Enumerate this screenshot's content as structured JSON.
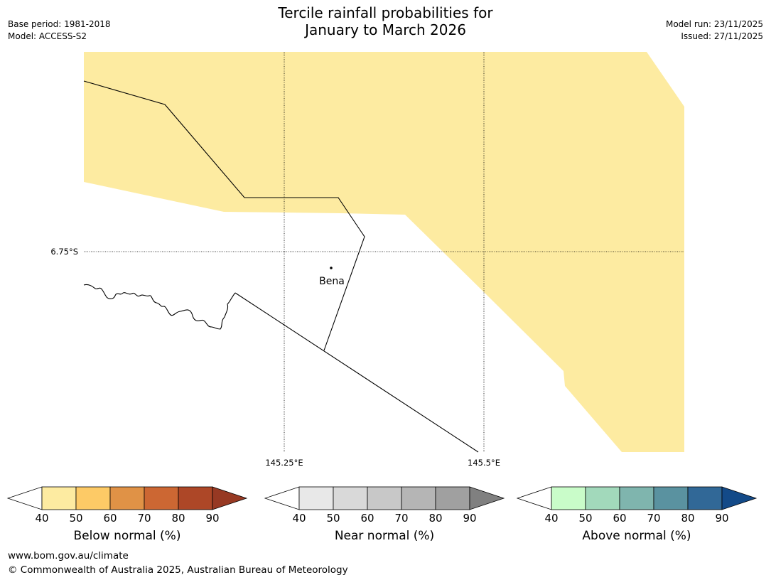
{
  "header": {
    "title_line1": "Tercile rainfall probabilities for",
    "title_line2": "January to March 2026",
    "base_period": "Base period: 1981-2018",
    "model": "Model: ACCESS-S2",
    "model_run": "Model run: 23/11/2025",
    "issued": "Issued: 27/11/2025"
  },
  "map": {
    "lat_labels": [
      "6.75°S"
    ],
    "lon_labels": [
      "145.25°E",
      "145.5°E"
    ],
    "place": {
      "name": "Bena"
    },
    "fill_color": "#fdeba1"
  },
  "colorbars": [
    {
      "label": "Below normal (%)",
      "ticks": [
        "40",
        "50",
        "60",
        "70",
        "80",
        "90"
      ],
      "colors": [
        "#ffffff",
        "#fdeba1",
        "#fdca66",
        "#e09246",
        "#cc6733",
        "#ad4727",
        "#973923"
      ]
    },
    {
      "label": "Near normal (%)",
      "ticks": [
        "40",
        "50",
        "60",
        "70",
        "80",
        "90"
      ],
      "colors": [
        "#ffffff",
        "#e8e8e8",
        "#d9d9d9",
        "#c8c8c8",
        "#b5b5b5",
        "#a0a0a0",
        "#808080"
      ]
    },
    {
      "label": "Above normal (%)",
      "ticks": [
        "40",
        "50",
        "60",
        "70",
        "80",
        "90"
      ],
      "colors": [
        "#ffffff",
        "#c9fcc9",
        "#a2d9bb",
        "#7fb5ae",
        "#5a92a0",
        "#316897",
        "#134a88"
      ]
    }
  ],
  "footer": {
    "url": "www.bom.gov.au/climate",
    "copyright": "© Commonwealth of Australia 2025, Australian Bureau of Meteorology"
  }
}
